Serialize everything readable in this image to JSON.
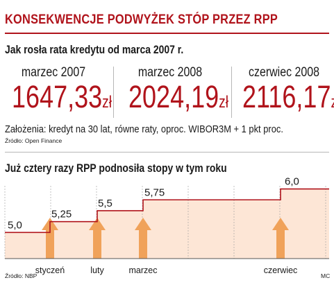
{
  "header": {
    "title": "KONSEKWENCJE PODWYŻEK STÓP PRZEZ RPP"
  },
  "loan": {
    "subtitle": "Jak rosła rata kredytu od marca 2007 r.",
    "columns": [
      {
        "month": "marzec 2007",
        "value": "1647,33",
        "unit": "zł"
      },
      {
        "month": "marzec 2008",
        "value": "2024,19",
        "unit": "zł"
      },
      {
        "month": "czerwiec 2008",
        "value": "2116,17",
        "unit": "zł"
      }
    ],
    "assumptions": "Założenia: kredyt na 30 lat,  równe raty, oproc. WIBOR3M + 1 pkt proc.",
    "source": "Źródło: Open Finance"
  },
  "rates": {
    "subtitle": "Już cztery razy RPP podnosiła stopy w tym roku",
    "source": "Źródło: NBP",
    "credit": "MC"
  },
  "colors": {
    "accent": "#b0131b",
    "fill": "#fde6d6",
    "arrow": "#f0a25a"
  },
  "chart_data": {
    "type": "line",
    "x": [
      "",
      "styczeń",
      "luty",
      "marzec",
      "",
      "czerwiec"
    ],
    "values": [
      5.0,
      5.25,
      5.5,
      5.75,
      5.75,
      6.0
    ],
    "data_labels": [
      "5,0",
      "5,25",
      "5,5",
      "5,75",
      "",
      "6,0"
    ],
    "increase_months": [
      "styczeń",
      "luty",
      "marzec",
      "czerwiec"
    ],
    "ylim": [
      4.4,
      6.2
    ],
    "grid": true
  }
}
